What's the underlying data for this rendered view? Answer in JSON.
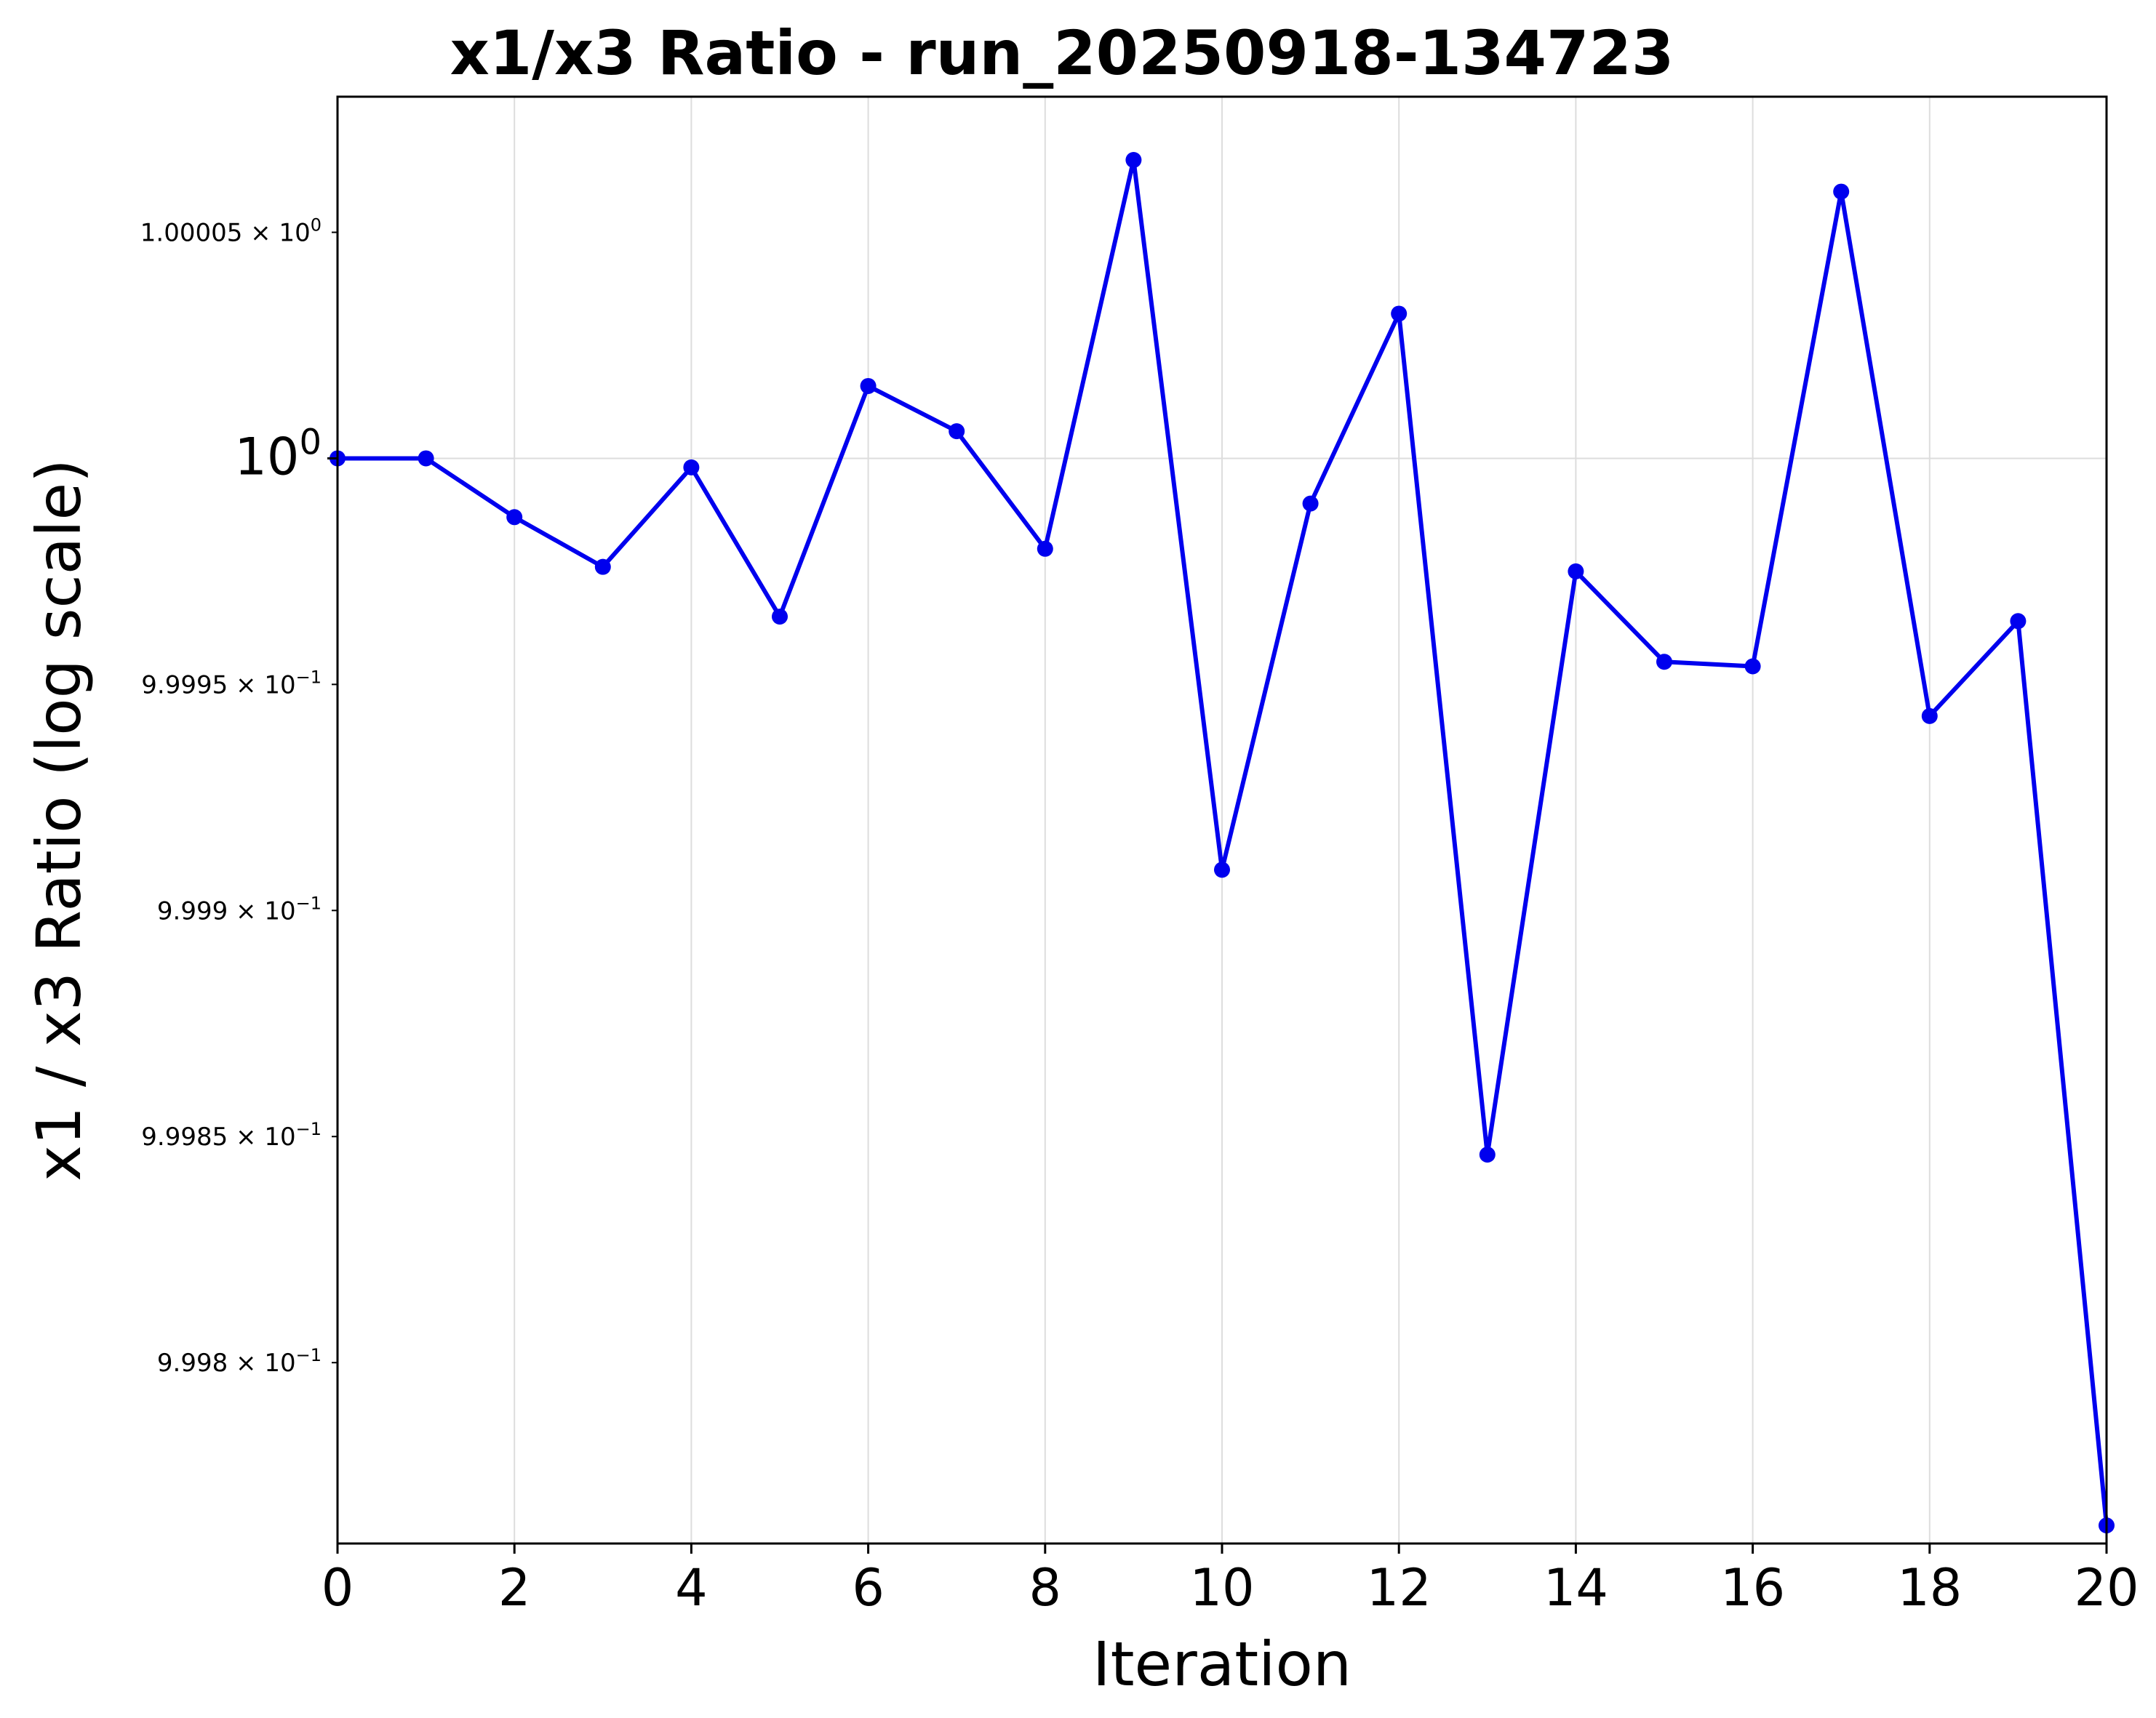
{
  "chart_data": {
    "type": "line",
    "title": "x1/x3 Ratio - run_20250918-134723",
    "xlabel": "Iteration",
    "ylabel": "x1 / x3 Ratio (log scale)",
    "y_scale": "log",
    "grid": true,
    "xlim": [
      0,
      20
    ],
    "ylim": [
      0.99976,
      1.00008
    ],
    "x_ticks": [
      0,
      2,
      4,
      6,
      8,
      10,
      12,
      14,
      16,
      18,
      20
    ],
    "x_tick_labels": [
      "0",
      "2",
      "4",
      "6",
      "8",
      "10",
      "12",
      "14",
      "16",
      "18",
      "20"
    ],
    "y_ticks": [
      {
        "value": 1.00005,
        "mantissa": "1.00005",
        "exponent": "0",
        "major": false
      },
      {
        "value": 1.0,
        "mantissa": "10",
        "exponent": "0",
        "major": true
      },
      {
        "value": 0.99995,
        "mantissa": "9.9995",
        "exponent": "−1",
        "major": false
      },
      {
        "value": 0.9999,
        "mantissa": "9.999",
        "exponent": "−1",
        "major": false
      },
      {
        "value": 0.99985,
        "mantissa": "9.9985",
        "exponent": "−1",
        "major": false
      },
      {
        "value": 0.9998,
        "mantissa": "9.998",
        "exponent": "−1",
        "major": false
      }
    ],
    "series": [
      {
        "color": "#0000ee",
        "marker": "circle",
        "x": [
          0,
          1,
          2,
          3,
          4,
          5,
          6,
          7,
          8,
          9,
          10,
          11,
          12,
          13,
          14,
          15,
          16,
          17,
          18,
          19,
          20
        ],
        "values": [
          1.0,
          1.0,
          0.999987,
          0.999976,
          0.999998,
          0.999965,
          1.000016,
          1.000006,
          0.99998,
          1.000066,
          0.999909,
          0.99999,
          1.000032,
          0.999846,
          0.999975,
          0.999955,
          0.999954,
          1.000059,
          0.999943,
          0.999964,
          0.999764
        ]
      }
    ]
  }
}
